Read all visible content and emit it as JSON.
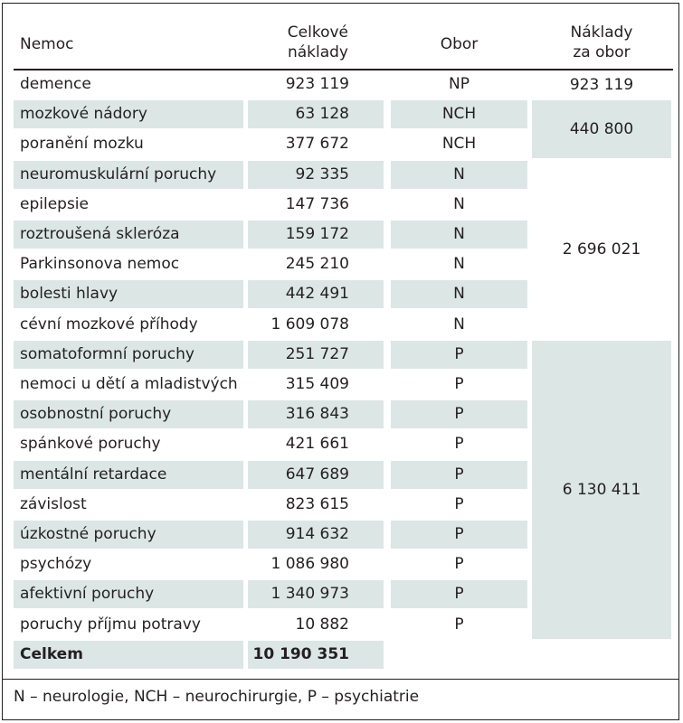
{
  "headers": {
    "disease": "Nemoc",
    "total_costs": [
      "Celkové",
      "náklady"
    ],
    "field": "Obor",
    "costs_per_field": [
      "Náklady",
      "za obor"
    ]
  },
  "rows": [
    {
      "disease": "demence",
      "cost": "923 119",
      "field": "NP",
      "shaded": false
    },
    {
      "disease": "mozkové nádory",
      "cost": "63 128",
      "field": "NCH",
      "shaded": true
    },
    {
      "disease": "poranění mozku",
      "cost": "377 672",
      "field": "NCH",
      "shaded": false
    },
    {
      "disease": "neuromuskulární poruchy",
      "cost": "92 335",
      "field": "N",
      "shaded": true
    },
    {
      "disease": "epilepsie",
      "cost": "147 736",
      "field": "N",
      "shaded": false
    },
    {
      "disease": "roztroušená skleróza",
      "cost": "159 172",
      "field": "N",
      "shaded": true
    },
    {
      "disease": "Parkinsonova nemoc",
      "cost": "245 210",
      "field": "N",
      "shaded": false
    },
    {
      "disease": "bolesti hlavy",
      "cost": "442 491",
      "field": "N",
      "shaded": true
    },
    {
      "disease": "cévní mozkové příhody",
      "cost": "1 609 078",
      "field": "N",
      "shaded": false
    },
    {
      "disease": "somatoformní poruchy",
      "cost": "251 727",
      "field": "P",
      "shaded": true
    },
    {
      "disease": "nemoci u dětí a mladistvých",
      "cost": "315 409",
      "field": "P",
      "shaded": false
    },
    {
      "disease": "osobnostní poruchy",
      "cost": "316 843",
      "field": "P",
      "shaded": true
    },
    {
      "disease": "spánkové poruchy",
      "cost": "421 661",
      "field": "P",
      "shaded": false
    },
    {
      "disease": "mentální retardace",
      "cost": "647 689",
      "field": "P",
      "shaded": true
    },
    {
      "disease": "závislost",
      "cost": "823 615",
      "field": "P",
      "shaded": false
    },
    {
      "disease": "úzkostné poruchy",
      "cost": "914 632",
      "field": "P",
      "shaded": true
    },
    {
      "disease": "psychózy",
      "cost": "1 086 980",
      "field": "P",
      "shaded": false
    },
    {
      "disease": "afektivní poruchy",
      "cost": "1 340 973",
      "field": "P",
      "shaded": true
    },
    {
      "disease": "poruchy příjmu potravy",
      "cost": "10 882",
      "field": "P",
      "shaded": false
    }
  ],
  "field_totals": [
    {
      "value": "923 119",
      "shaded": false
    },
    {
      "value": "440 800",
      "shaded": true
    },
    {
      "value": "2 696 021",
      "shaded": false
    },
    {
      "value": "6 130 411",
      "shaded": true
    }
  ],
  "total": {
    "label": "Celkem",
    "value": "10 190 351"
  },
  "footnote": "N – neurologie, NCH – neurochirurgie, P – psychiatrie"
}
